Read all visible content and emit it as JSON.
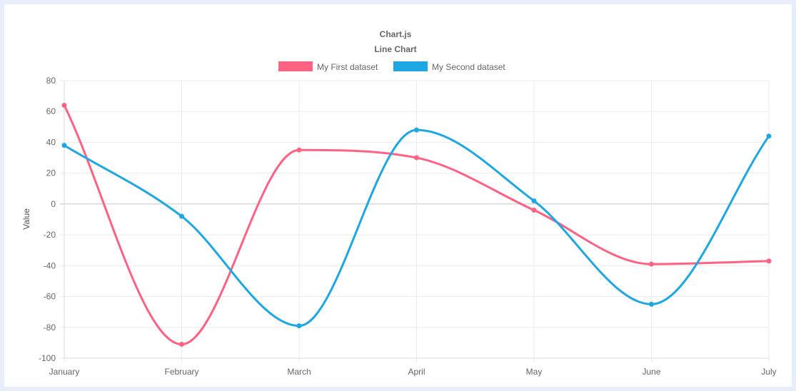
{
  "chart_data": {
    "type": "line",
    "title": "Chart.js",
    "subtitle": "Line Chart",
    "xlabel": "",
    "ylabel": "Value",
    "categories": [
      "January",
      "February",
      "March",
      "April",
      "May",
      "June",
      "July"
    ],
    "ylim": [
      -100,
      80
    ],
    "yticks": [
      80,
      60,
      40,
      20,
      0,
      -20,
      -40,
      -60,
      -80,
      -100
    ],
    "grid": true,
    "legend_position": "top",
    "series": [
      {
        "name": "My First dataset",
        "color": "#ff6384",
        "values": [
          64,
          -91,
          35,
          30,
          -4,
          -39,
          -37
        ]
      },
      {
        "name": "My Second dataset",
        "color": "#1ea7e1",
        "values": [
          38,
          -8,
          -79,
          48,
          2,
          -65,
          44
        ]
      }
    ]
  }
}
